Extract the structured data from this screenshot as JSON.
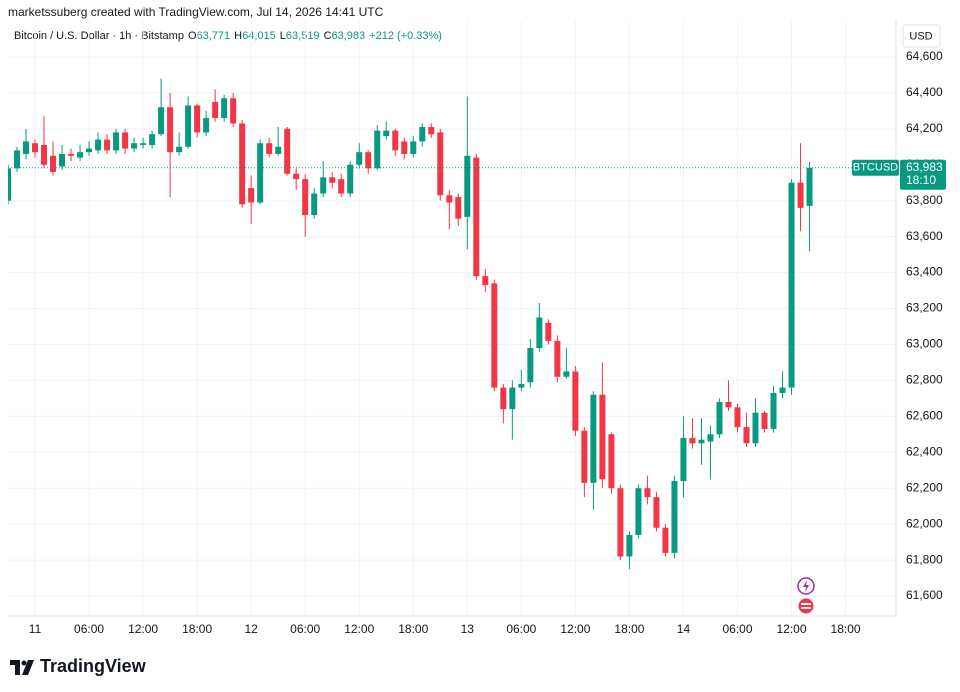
{
  "attribution": "marketssuberg created with TradingView.com, Jul 14, 2026 14:41 UTC",
  "brand": "TradingView",
  "chart_data": {
    "type": "candlestick",
    "legend": {
      "name": "Bitcoin / U.S. Dollar · 1h · Bitstamp",
      "o_label": "O",
      "o": "63,771",
      "h_label": "H",
      "h": "64,015",
      "l_label": "L",
      "l": "63,519",
      "c_label": "C",
      "c": "63,983",
      "change": "+212 (+0.33%)"
    },
    "currency": "USD",
    "symbol": "BTCUSD",
    "last_price": {
      "value": 63983,
      "label": "63,983"
    },
    "countdown": "18:10",
    "up_color": "#089981",
    "down_color": "#f23645",
    "grid": true,
    "ylim": [
      61500,
      64800
    ],
    "yticks": [
      {
        "value": 64600,
        "label": "64,600"
      },
      {
        "value": 64400,
        "label": "64,400"
      },
      {
        "value": 64200,
        "label": "64,200"
      },
      {
        "value": 64000,
        "label": "64,000"
      },
      {
        "value": 63800,
        "label": "63,800"
      },
      {
        "value": 63600,
        "label": "63,600"
      },
      {
        "value": 63400,
        "label": "63,400"
      },
      {
        "value": 63200,
        "label": "63,200"
      },
      {
        "value": 63000,
        "label": "63,000"
      },
      {
        "value": 62800,
        "label": "62,800"
      },
      {
        "value": 62600,
        "label": "62,600"
      },
      {
        "value": 62400,
        "label": "62,400"
      },
      {
        "value": 62200,
        "label": "62,200"
      },
      {
        "value": 62000,
        "label": "62,000"
      },
      {
        "value": 61800,
        "label": "61,800"
      },
      {
        "value": 61600,
        "label": "61,600"
      }
    ],
    "xlim": [
      0,
      98.6
    ],
    "xticks": [
      {
        "value": 3,
        "label": "11"
      },
      {
        "value": 9,
        "label": "06:00"
      },
      {
        "value": 15,
        "label": "12:00"
      },
      {
        "value": 21,
        "label": "18:00"
      },
      {
        "value": 27,
        "label": "12"
      },
      {
        "value": 33,
        "label": "06:00"
      },
      {
        "value": 39,
        "label": "12:00"
      },
      {
        "value": 45,
        "label": "18:00"
      },
      {
        "value": 51,
        "label": "13"
      },
      {
        "value": 57,
        "label": "06:00"
      },
      {
        "value": 63,
        "label": "12:00"
      },
      {
        "value": 69,
        "label": "18:00"
      },
      {
        "value": 75,
        "label": "14"
      },
      {
        "value": 81,
        "label": "06:00"
      },
      {
        "value": 87,
        "label": "12:00"
      },
      {
        "value": 93,
        "label": "18:00"
      }
    ],
    "open": [
      63800,
      63980,
      64060,
      64120,
      64110,
      64050,
      63990,
      64060,
      64040,
      64070,
      64080,
      64140,
      64080,
      64180,
      64090,
      64110,
      64110,
      64170,
      64320,
      64070,
      64100,
      64330,
      64180,
      64350,
      64260,
      64370,
      64230,
      63870,
      63790,
      64120,
      64060,
      64200,
      63950,
      63920,
      63720,
      63840,
      63930,
      63920,
      63840,
      64000,
      64070,
      63980,
      64160,
      64190,
      64130,
      64060,
      64130,
      64210,
      64180,
      63830,
      63820,
      63710,
      64040,
      63380,
      63340,
      62760,
      62640,
      62760,
      62790,
      62980,
      63120,
      63020,
      62820,
      62850,
      62520,
      62230,
      62720,
      62500,
      62200,
      61820,
      61940,
      62200,
      62150,
      61980,
      61840,
      62240,
      62480,
      62450,
      62460,
      62500,
      62680,
      62650,
      62540,
      62450,
      62620,
      62530,
      62730,
      62760,
      63900,
      63771
    ],
    "high": [
      64000,
      64100,
      64200,
      64140,
      64270,
      64130,
      64110,
      64090,
      64110,
      64130,
      64180,
      64170,
      64200,
      64200,
      64150,
      64150,
      64190,
      64480,
      64400,
      64180,
      64380,
      64340,
      64300,
      64420,
      64390,
      64400,
      64250,
      63940,
      64140,
      64150,
      64210,
      64210,
      63980,
      63950,
      63870,
      64020,
      63960,
      63950,
      64020,
      64120,
      64080,
      64220,
      64240,
      64200,
      64150,
      64160,
      64230,
      64230,
      64200,
      63860,
      63840,
      64380,
      64060,
      63420,
      63360,
      62780,
      62800,
      62860,
      63030,
      63230,
      63140,
      63050,
      62980,
      62880,
      62540,
      62740,
      62900,
      62510,
      62220,
      61960,
      62220,
      62270,
      62180,
      62000,
      62270,
      62600,
      62590,
      62590,
      62550,
      62700,
      62800,
      62670,
      62620,
      62700,
      62630,
      62770,
      62850,
      63920,
      64120,
      64015
    ],
    "low": [
      63780,
      63960,
      64030,
      64040,
      63980,
      63940,
      63970,
      64020,
      64020,
      64050,
      64060,
      64060,
      64060,
      64060,
      64070,
      64090,
      64090,
      64160,
      63820,
      64050,
      64090,
      64150,
      64160,
      64240,
      64240,
      64210,
      63760,
      63670,
      63780,
      64040,
      64050,
      63940,
      63860,
      63600,
      63700,
      63820,
      63870,
      63820,
      63820,
      63980,
      63950,
      63970,
      64140,
      64050,
      64030,
      64040,
      64100,
      64150,
      63800,
      63640,
      63660,
      63530,
      63360,
      63290,
      62740,
      62560,
      62470,
      62740,
      62760,
      62960,
      63000,
      62790,
      62810,
      62490,
      62150,
      62080,
      62200,
      62170,
      61800,
      61750,
      61920,
      62110,
      61960,
      61820,
      61810,
      62150,
      62420,
      62330,
      62250,
      62480,
      62630,
      62510,
      62430,
      62430,
      62510,
      62510,
      62700,
      62720,
      63630,
      63519
    ],
    "close": [
      63980,
      64080,
      64130,
      64070,
      64000,
      63960,
      64060,
      64050,
      64070,
      64090,
      64140,
      64080,
      64180,
      64090,
      64120,
      64120,
      64170,
      64320,
      64070,
      64100,
      64330,
      64180,
      64260,
      64260,
      64370,
      64230,
      63780,
      63790,
      64120,
      64060,
      64100,
      63950,
      63920,
      63720,
      63840,
      63930,
      63900,
      63840,
      64000,
      64070,
      63980,
      64190,
      64190,
      64080,
      64060,
      64130,
      64210,
      64170,
      63830,
      63790,
      63700,
      64050,
      63380,
      63330,
      62760,
      62640,
      62760,
      62780,
      62980,
      63150,
      63020,
      62820,
      62850,
      62520,
      62230,
      62720,
      62250,
      62200,
      61820,
      61940,
      62200,
      62150,
      61980,
      61840,
      62240,
      62480,
      62450,
      62470,
      62500,
      62680,
      62650,
      62540,
      62450,
      62620,
      62530,
      62730,
      62760,
      63900,
      63760,
      63983
    ]
  }
}
